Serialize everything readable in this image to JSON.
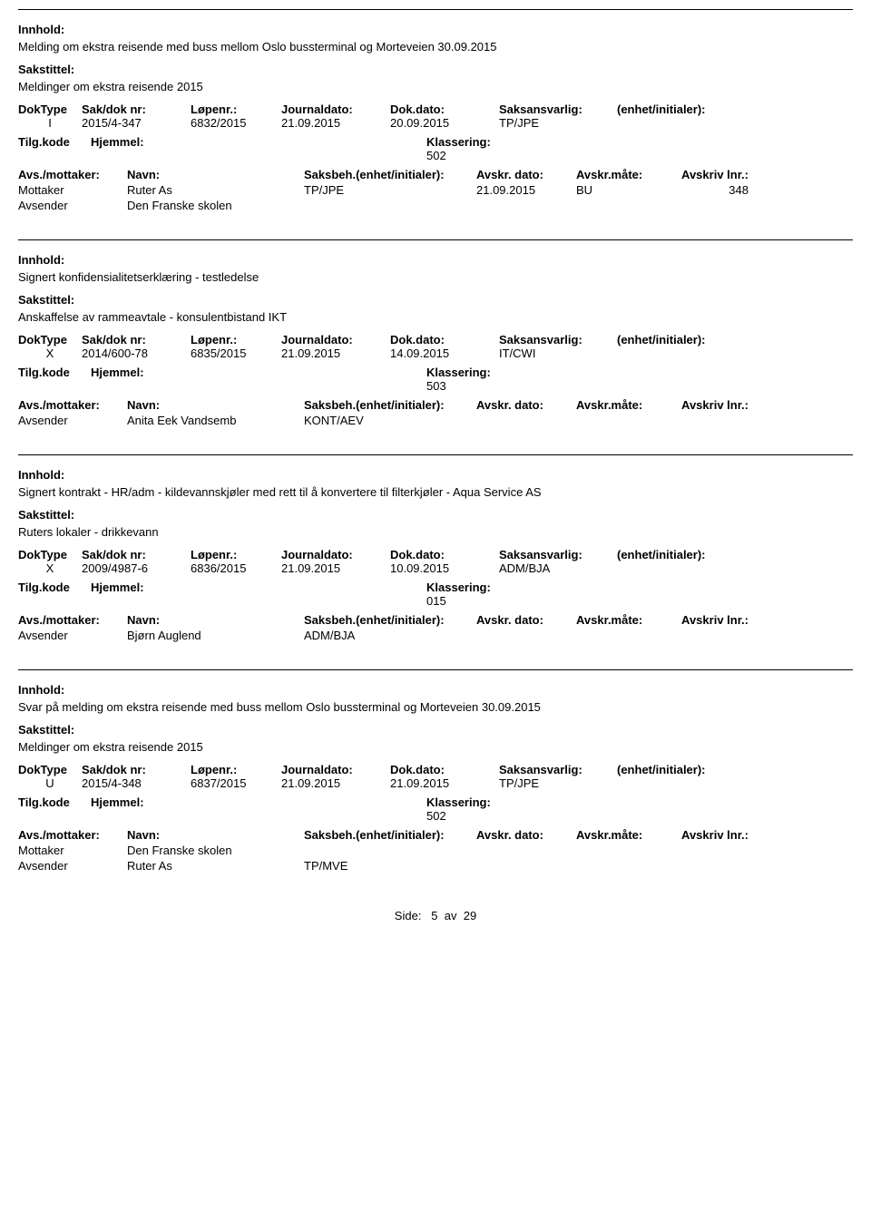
{
  "labels": {
    "innhold": "Innhold:",
    "sakstittel": "Sakstittel:",
    "doktype": "DokType",
    "sakdoknr": "Sak/dok nr:",
    "lopenr": "Løpenr.:",
    "journaldato": "Journaldato:",
    "dokdato": "Dok.dato:",
    "saksansvarlig": "Saksansvarlig:",
    "enhet": "(enhet/initialer):",
    "tilgkode": "Tilg.kode",
    "hjemmel": "Hjemmel:",
    "klassering": "Klassering:",
    "avsmottaker": "Avs./mottaker:",
    "navn": "Navn:",
    "saksbeh": "Saksbeh.(enhet/initialer):",
    "avskrdato": "Avskr. dato:",
    "avskrmate": "Avskr.måte:",
    "avskrivlnr": "Avskriv lnr.:",
    "mottaker": "Mottaker",
    "avsender": "Avsender"
  },
  "entries": [
    {
      "innhold": "Melding om ekstra reisende med buss mellom Oslo bussterminal og Morteveien 30.09.2015",
      "sakstittel": "Meldinger om ekstra reisende 2015",
      "doktype": "I",
      "sakdoknr": "2015/4-347",
      "lopenr": "6832/2015",
      "journaldato": "21.09.2015",
      "dokdato": "20.09.2015",
      "saksansvarlig": "TP/JPE",
      "klassering": "502",
      "parties": [
        {
          "role": "Mottaker",
          "navn": "Ruter As",
          "saksbeh": "TP/JPE",
          "avskrdato": "21.09.2015",
          "avskrmate": "BU",
          "avskrlnr": "348"
        },
        {
          "role": "Avsender",
          "navn": "Den Franske skolen",
          "saksbeh": "",
          "avskrdato": "",
          "avskrmate": "",
          "avskrlnr": ""
        }
      ]
    },
    {
      "innhold": "Signert konfidensialitetserklæring - testledelse",
      "sakstittel": "Anskaffelse av rammeavtale - konsulentbistand IKT",
      "doktype": "X",
      "sakdoknr": "2014/600-78",
      "lopenr": "6835/2015",
      "journaldato": "21.09.2015",
      "dokdato": "14.09.2015",
      "saksansvarlig": "IT/CWI",
      "klassering": "503",
      "parties": [
        {
          "role": "Avsender",
          "navn": "Anita Eek Vandsemb",
          "saksbeh": "KONT/AEV",
          "avskrdato": "",
          "avskrmate": "",
          "avskrlnr": ""
        }
      ]
    },
    {
      "innhold": "Signert kontrakt - HR/adm - kildevannskjøler med rett til å konvertere til filterkjøler - Aqua Service AS",
      "sakstittel": "Ruters lokaler - drikkevann",
      "doktype": "X",
      "sakdoknr": "2009/4987-6",
      "lopenr": "6836/2015",
      "journaldato": "21.09.2015",
      "dokdato": "10.09.2015",
      "saksansvarlig": "ADM/BJA",
      "klassering": "015",
      "parties": [
        {
          "role": "Avsender",
          "navn": "Bjørn Auglend",
          "saksbeh": "ADM/BJA",
          "avskrdato": "",
          "avskrmate": "",
          "avskrlnr": ""
        }
      ]
    },
    {
      "innhold": "Svar på melding om ekstra reisende med buss mellom Oslo bussterminal og Morteveien 30.09.2015",
      "sakstittel": "Meldinger om ekstra reisende 2015",
      "doktype": "U",
      "sakdoknr": "2015/4-348",
      "lopenr": "6837/2015",
      "journaldato": "21.09.2015",
      "dokdato": "21.09.2015",
      "saksansvarlig": "TP/JPE",
      "klassering": "502",
      "parties": [
        {
          "role": "Mottaker",
          "navn": "Den Franske skolen",
          "saksbeh": "",
          "avskrdato": "",
          "avskrmate": "",
          "avskrlnr": ""
        },
        {
          "role": "Avsender",
          "navn": "Ruter As",
          "saksbeh": "TP/MVE",
          "avskrdato": "",
          "avskrmate": "",
          "avskrlnr": ""
        }
      ]
    }
  ],
  "footer": {
    "prefix": "Side:",
    "page": "5",
    "sep": "av",
    "total": "29"
  }
}
